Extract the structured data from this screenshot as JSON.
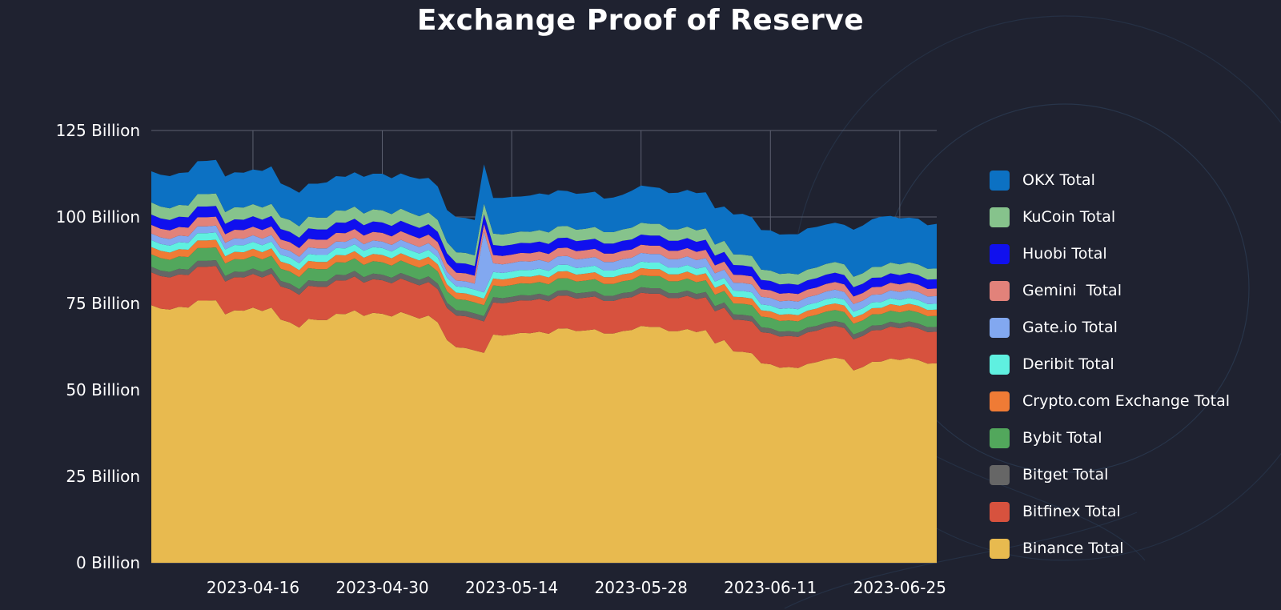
{
  "chart_data": {
    "type": "area",
    "stacked": true,
    "title": "Exchange Proof of Reserve",
    "xlabel": "",
    "ylabel": "",
    "ylim": [
      0,
      125
    ],
    "y_unit": "Billion",
    "y_ticks": [
      0,
      25,
      50,
      75,
      100,
      125
    ],
    "y_tick_labels": [
      "0 Billion",
      "25 Billion",
      "50 Billion",
      "75 Billion",
      "100 Billion",
      "125 Billion"
    ],
    "x_tick_labels": [
      "2023-04-16",
      "2023-04-30",
      "2023-05-14",
      "2023-05-28",
      "2023-06-11",
      "2023-06-25"
    ],
    "x_tick_index": [
      11,
      25,
      39,
      53,
      67,
      81
    ],
    "grid": true,
    "legend_position": "right",
    "x": [
      "2023-04-05",
      "2023-04-06",
      "2023-04-07",
      "2023-04-08",
      "2023-04-09",
      "2023-04-10",
      "2023-04-11",
      "2023-04-12",
      "2023-04-13",
      "2023-04-14",
      "2023-04-15",
      "2023-04-16",
      "2023-04-17",
      "2023-04-18",
      "2023-04-19",
      "2023-04-20",
      "2023-04-21",
      "2023-04-22",
      "2023-04-23",
      "2023-04-24",
      "2023-04-25",
      "2023-04-26",
      "2023-04-27",
      "2023-04-28",
      "2023-04-29",
      "2023-04-30",
      "2023-05-01",
      "2023-05-02",
      "2023-05-03",
      "2023-05-04",
      "2023-05-05",
      "2023-05-06",
      "2023-05-07",
      "2023-05-08",
      "2023-05-09",
      "2023-05-10",
      "2023-05-11",
      "2023-05-12",
      "2023-05-13",
      "2023-05-14",
      "2023-05-15",
      "2023-05-16",
      "2023-05-17",
      "2023-05-18",
      "2023-05-19",
      "2023-05-20",
      "2023-05-21",
      "2023-05-22",
      "2023-05-23",
      "2023-05-24",
      "2023-05-25",
      "2023-05-26",
      "2023-05-27",
      "2023-05-28",
      "2023-05-29",
      "2023-05-30",
      "2023-05-31",
      "2023-06-01",
      "2023-06-02",
      "2023-06-03",
      "2023-06-04",
      "2023-06-05",
      "2023-06-06",
      "2023-06-07",
      "2023-06-08",
      "2023-06-09",
      "2023-06-10",
      "2023-06-11",
      "2023-06-12",
      "2023-06-13",
      "2023-06-14",
      "2023-06-15",
      "2023-06-16",
      "2023-06-17",
      "2023-06-18",
      "2023-06-19",
      "2023-06-20",
      "2023-06-21",
      "2023-06-22",
      "2023-06-23",
      "2023-06-24",
      "2023-06-25",
      "2023-06-26",
      "2023-06-27",
      "2023-06-28",
      "2023-06-29"
    ],
    "series": [
      {
        "name": "Binance Total",
        "color": "#e8ba4f",
        "values": [
          74.5,
          73.5,
          73.2,
          74,
          73.8,
          75.8,
          75.8,
          75.9,
          71.8,
          73,
          72.9,
          73.8,
          72.8,
          73.8,
          70.3,
          69.5,
          68,
          70.5,
          70.2,
          70.2,
          72,
          71.9,
          73,
          71.4,
          72.3,
          72,
          71.2,
          72.5,
          71.6,
          70.6,
          71.5,
          69.5,
          64.4,
          62.3,
          62.1,
          61.4,
          60.7,
          66,
          65.7,
          66,
          66.5,
          66.4,
          66.8,
          66.2,
          67.7,
          67.8,
          67,
          67.2,
          67.5,
          66.3,
          66.3,
          67,
          67.3,
          68.5,
          68.2,
          68.2,
          67,
          67,
          67.6,
          66.7,
          67.3,
          63.4,
          64.4,
          61.1,
          61,
          60.6,
          57.7,
          57.4,
          56.4,
          56.6,
          56.3,
          57.5,
          58,
          58.8,
          59.3,
          58.8,
          55.6,
          56.6,
          58.1,
          58.2,
          59.1,
          58.6,
          59.2,
          58.6,
          57.6,
          57.7
        ]
      },
      {
        "name": "Bitfinex Total",
        "color": "#d7523e",
        "values": [
          9.5,
          9.4,
          9.3,
          9.4,
          9.4,
          9.8,
          9.8,
          9.9,
          9.5,
          9.6,
          9.6,
          9.7,
          9.7,
          9.8,
          9.6,
          9.6,
          9.5,
          9.6,
          9.6,
          9.6,
          9.7,
          9.7,
          9.8,
          9.6,
          9.7,
          9.7,
          9.6,
          9.7,
          9.6,
          9.6,
          9.7,
          9.6,
          9.3,
          9.2,
          9.2,
          9.2,
          9.1,
          9.3,
          9.3,
          9.4,
          9.4,
          9.4,
          9.5,
          9.4,
          9.5,
          9.5,
          9.4,
          9.5,
          9.5,
          9.4,
          9.4,
          9.5,
          9.5,
          9.6,
          9.6,
          9.6,
          9.5,
          9.5,
          9.6,
          9.5,
          9.5,
          9.3,
          9.4,
          9.2,
          9.2,
          9.2,
          9,
          9,
          9,
          9,
          9,
          9.1,
          9.1,
          9.2,
          9.2,
          9.1,
          9,
          9,
          9.1,
          9.1,
          9.2,
          9.2,
          9.2,
          9.2,
          9.1,
          9.1
        ]
      },
      {
        "name": "Bitget Total",
        "color": "#666666",
        "values": [
          1.6,
          1.6,
          1.6,
          1.6,
          1.6,
          1.7,
          1.7,
          1.7,
          1.6,
          1.6,
          1.6,
          1.6,
          1.6,
          1.6,
          1.6,
          1.6,
          1.6,
          1.6,
          1.6,
          1.6,
          1.6,
          1.6,
          1.6,
          1.6,
          1.6,
          1.6,
          1.6,
          1.6,
          1.6,
          1.6,
          1.6,
          1.6,
          1.5,
          1.5,
          1.5,
          1.5,
          1.5,
          1.5,
          1.5,
          1.5,
          1.5,
          1.5,
          1.5,
          1.5,
          1.5,
          1.5,
          1.5,
          1.5,
          1.5,
          1.5,
          1.5,
          1.5,
          1.5,
          1.6,
          1.6,
          1.6,
          1.5,
          1.5,
          1.5,
          1.5,
          1.5,
          1.5,
          1.5,
          1.5,
          1.5,
          1.5,
          1.4,
          1.4,
          1.4,
          1.4,
          1.4,
          1.4,
          1.4,
          1.4,
          1.4,
          1.4,
          1.4,
          1.4,
          1.4,
          1.4,
          1.4,
          1.4,
          1.4,
          1.4,
          1.4,
          1.4
        ]
      },
      {
        "name": "Bybit Total",
        "color": "#52a75c",
        "values": [
          3.6,
          3.6,
          3.5,
          3.6,
          3.6,
          3.7,
          3.7,
          3.7,
          3.6,
          3.6,
          3.6,
          3.6,
          3.6,
          3.6,
          3.5,
          3.5,
          3.5,
          3.5,
          3.5,
          3.5,
          3.6,
          3.6,
          3.6,
          3.5,
          3.6,
          3.6,
          3.5,
          3.6,
          3.5,
          3.5,
          3.6,
          3.5,
          3.3,
          3.2,
          3.2,
          3.2,
          3.2,
          3.4,
          3.4,
          3.4,
          3.4,
          3.4,
          3.4,
          3.4,
          3.5,
          3.5,
          3.4,
          3.4,
          3.5,
          3.4,
          3.4,
          3.4,
          3.5,
          3.5,
          3.5,
          3.5,
          3.4,
          3.4,
          3.5,
          3.4,
          3.4,
          3.3,
          3.3,
          3.2,
          3.2,
          3.2,
          3.1,
          3.1,
          3.1,
          3.1,
          3.1,
          3.1,
          3.2,
          3.2,
          3.2,
          3.2,
          3.1,
          3.1,
          3.2,
          3.2,
          3.2,
          3.2,
          3.2,
          3.2,
          3.2,
          3.2
        ]
      },
      {
        "name": "Crypto.com Exchange Total",
        "color": "#ef7b35",
        "values": [
          2.1,
          2.1,
          2.1,
          2.1,
          2.1,
          2.2,
          2.2,
          2.2,
          2.1,
          2.1,
          2.1,
          2.1,
          2.1,
          2.1,
          2.1,
          2.1,
          2,
          2.1,
          2.1,
          2.1,
          2.1,
          2.1,
          2.1,
          2.1,
          2.1,
          2.1,
          2.1,
          2.1,
          2.1,
          2.1,
          2.1,
          2.1,
          2,
          1.9,
          1.9,
          1.9,
          1.9,
          2,
          2,
          2,
          2,
          2,
          2,
          2,
          2,
          2,
          2,
          2,
          2,
          2,
          2,
          2,
          2,
          2,
          2,
          2,
          2,
          2,
          2,
          2,
          2,
          2,
          2,
          1.9,
          1.9,
          1.9,
          1.8,
          1.8,
          1.8,
          1.8,
          1.8,
          1.8,
          1.8,
          1.9,
          1.9,
          1.9,
          1.8,
          1.8,
          1.8,
          1.8,
          1.9,
          1.9,
          1.9,
          1.9,
          1.8,
          1.8
        ]
      },
      {
        "name": "Deribit Total",
        "color": "#5ff0e0",
        "values": [
          2,
          2,
          2,
          2,
          2,
          2.1,
          2.1,
          2.1,
          2,
          2,
          2,
          2,
          2,
          2,
          2,
          2,
          2,
          2,
          2,
          2,
          2,
          2,
          2,
          2,
          2,
          2,
          2,
          2,
          2,
          2,
          2,
          2,
          1.9,
          1.8,
          1.8,
          1.8,
          1.8,
          1.9,
          1.9,
          1.9,
          1.9,
          1.9,
          1.9,
          1.9,
          1.9,
          1.9,
          1.9,
          1.9,
          1.9,
          1.9,
          1.9,
          1.9,
          1.9,
          1.9,
          1.9,
          1.9,
          1.9,
          1.9,
          1.9,
          1.9,
          1.9,
          1.8,
          1.8,
          1.8,
          1.8,
          1.8,
          1.7,
          1.7,
          1.7,
          1.7,
          1.7,
          1.7,
          1.7,
          1.7,
          1.7,
          1.7,
          1.7,
          1.7,
          1.7,
          1.7,
          1.7,
          1.7,
          1.7,
          1.7,
          1.7,
          1.7
        ]
      },
      {
        "name": "Gate.io Total",
        "color": "#82a8f0",
        "values": [
          1.9,
          1.9,
          1.9,
          1.9,
          1.9,
          2,
          2,
          2,
          1.9,
          1.9,
          1.9,
          1.9,
          1.9,
          1.9,
          1.9,
          1.9,
          1.9,
          1.9,
          1.9,
          1.9,
          1.9,
          1.9,
          1.9,
          1.9,
          1.9,
          1.9,
          1.9,
          1.9,
          1.9,
          1.9,
          1.9,
          1.9,
          1.8,
          1.7,
          1.7,
          1.7,
          17.5,
          2.5,
          2.5,
          2.5,
          2.5,
          2.5,
          2.5,
          2.5,
          2.5,
          2.5,
          2.5,
          2.5,
          2.5,
          2.5,
          2.5,
          2.5,
          2.5,
          2.5,
          2.5,
          2.5,
          2.5,
          2.5,
          2.5,
          2.5,
          2.5,
          2.4,
          2.4,
          2.3,
          2.3,
          2.3,
          2.2,
          2.2,
          2.2,
          2.2,
          2.2,
          2.2,
          2.2,
          2.2,
          2.3,
          2.2,
          2.2,
          2.2,
          2.2,
          2.2,
          2.3,
          2.3,
          2.3,
          2.3,
          2.2,
          2.2
        ]
      },
      {
        "name": "Gemini  Total",
        "color": "#e2827a",
        "values": [
          2.5,
          2.5,
          2.5,
          2.5,
          2.5,
          2.6,
          2.6,
          2.6,
          2.5,
          2.5,
          2.5,
          2.5,
          2.5,
          2.5,
          2.5,
          2.5,
          2.5,
          2.5,
          2.5,
          2.5,
          2.5,
          2.5,
          2.5,
          2.5,
          2.5,
          2.5,
          2.5,
          2.5,
          2.5,
          2.5,
          2.5,
          2.5,
          2.4,
          2.3,
          2.3,
          2.3,
          2.3,
          2.4,
          2.4,
          2.4,
          2.4,
          2.4,
          2.4,
          2.4,
          2.4,
          2.4,
          2.4,
          2.4,
          2.4,
          2.4,
          2.4,
          2.4,
          2.4,
          2.4,
          2.4,
          2.4,
          2.4,
          2.4,
          2.4,
          2.4,
          2.4,
          2.3,
          2.3,
          2.3,
          2.3,
          2.3,
          2.2,
          2.2,
          2.2,
          2.2,
          2.2,
          2.2,
          2.2,
          2.2,
          2.2,
          2.2,
          2.2,
          2.2,
          2.2,
          2.2,
          2.2,
          2.2,
          2.2,
          2.2,
          2.2,
          2.2
        ]
      },
      {
        "name": "Huobi Total",
        "color": "#1010ee",
        "values": [
          3,
          3,
          3,
          3,
          3,
          3.1,
          3.1,
          3.1,
          3,
          3,
          3,
          3,
          3,
          3,
          3,
          3,
          3,
          3,
          3,
          3,
          3,
          3,
          3,
          3,
          3,
          3,
          3,
          3,
          3,
          3,
          3,
          3,
          2.9,
          2.8,
          2.8,
          2.8,
          2.8,
          2.9,
          2.9,
          2.9,
          2.9,
          2.9,
          2.9,
          2.9,
          2.9,
          2.9,
          2.9,
          2.9,
          2.9,
          2.9,
          2.9,
          2.9,
          2.9,
          2.9,
          2.9,
          2.9,
          2.9,
          2.9,
          2.9,
          2.9,
          2.9,
          2.8,
          2.8,
          2.8,
          2.8,
          2.8,
          2.7,
          2.7,
          2.7,
          2.7,
          2.7,
          2.7,
          2.7,
          2.7,
          2.7,
          2.7,
          2.7,
          2.7,
          2.7,
          2.7,
          2.7,
          2.7,
          2.7,
          2.7,
          2.7,
          2.7
        ]
      },
      {
        "name": "KuCoin Total",
        "color": "#86c38c",
        "values": [
          3.5,
          3.4,
          3.4,
          3.4,
          3.4,
          3.6,
          3.6,
          3.6,
          3.4,
          3.5,
          3.5,
          3.5,
          3.5,
          3.5,
          3.4,
          3.4,
          3.3,
          3.4,
          3.4,
          3.4,
          3.5,
          3.5,
          3.5,
          3.4,
          3.5,
          3.5,
          3.4,
          3.5,
          3.4,
          3.4,
          3.4,
          3.4,
          3.2,
          3.1,
          3.1,
          3.1,
          3.1,
          3.3,
          3.3,
          3.3,
          3.3,
          3.3,
          3.3,
          3.3,
          3.4,
          3.4,
          3.3,
          3.3,
          3.4,
          3.3,
          3.3,
          3.3,
          3.4,
          3.4,
          3.4,
          3.4,
          3.3,
          3.3,
          3.3,
          3.3,
          3.3,
          3.2,
          3.2,
          3.1,
          3.1,
          3.1,
          3,
          3,
          3,
          3,
          3,
          3.1,
          3.1,
          3.1,
          3.1,
          3.1,
          3,
          3,
          3.1,
          3.1,
          3.1,
          3.1,
          3.1,
          3.1,
          3.1,
          3.1
        ]
      },
      {
        "name": "OKX Total",
        "color": "#0c71c3",
        "values": [
          9,
          9.2,
          9.3,
          9.2,
          9.6,
          9.5,
          9.6,
          9.7,
          10.3,
          10.1,
          10.1,
          10,
          10.6,
          10.8,
          9.8,
          9.4,
          9.7,
          9.5,
          9.8,
          10.2,
          9.9,
          9.8,
          9.9,
          10.6,
          10.3,
          10.6,
          10.4,
          10.2,
          10.4,
          10.8,
          10,
          9.7,
          9.3,
          10.1,
          10.1,
          10.2,
          11.3,
          10.3,
          10.6,
          10.5,
          10.1,
          10.5,
          10.6,
          10.9,
          10.4,
          10.1,
          10.4,
          10.3,
          10.2,
          9.7,
          10,
          10,
          10.7,
          10.8,
          10.7,
          10.4,
          10.5,
          10.6,
          10.6,
          10.8,
          10.4,
          10.5,
          9.9,
          11.5,
          11.8,
          11.2,
          11.4,
          11.6,
          11.4,
          11.3,
          11.6,
          11.9,
          11.7,
          11.4,
          11.3,
          11.4,
          13.6,
          13.8,
          13.8,
          14.5,
          13.5,
          13.3,
          12.9,
          13.2,
          12.6,
          12.9
        ]
      }
    ]
  }
}
